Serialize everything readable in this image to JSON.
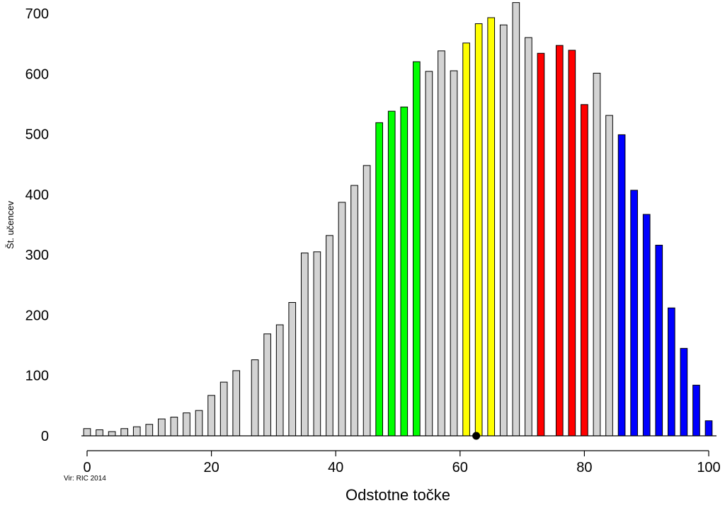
{
  "chart_data": {
    "type": "bar",
    "title": "",
    "xlabel": "Odstotne točke",
    "ylabel": "Št. učencev",
    "source": "Vir: RIC 2014",
    "xlim": [
      0,
      100
    ],
    "ylim": [
      0,
      700
    ],
    "xticks": [
      0,
      20,
      40,
      60,
      80,
      100
    ],
    "yticks": [
      0,
      100,
      200,
      300,
      400,
      500,
      600,
      700
    ],
    "grid": false,
    "legend": "none",
    "bar_width_units": 1.1,
    "colors": {
      "gray": "#d3d3d3",
      "green": "#00ff00",
      "yellow": "#ffff00",
      "red": "#ff0000",
      "blue": "#0000ff",
      "edge": "#000000",
      "marker": "#000000"
    },
    "bars": [
      {
        "x": 0,
        "y": 12,
        "color": "gray"
      },
      {
        "x": 2,
        "y": 10,
        "color": "gray"
      },
      {
        "x": 4,
        "y": 7,
        "color": "gray"
      },
      {
        "x": 6,
        "y": 12,
        "color": "gray"
      },
      {
        "x": 8,
        "y": 15,
        "color": "gray"
      },
      {
        "x": 10,
        "y": 19,
        "color": "gray"
      },
      {
        "x": 12,
        "y": 28,
        "color": "gray"
      },
      {
        "x": 14,
        "y": 31,
        "color": "gray"
      },
      {
        "x": 16,
        "y": 38,
        "color": "gray"
      },
      {
        "x": 18,
        "y": 42,
        "color": "gray"
      },
      {
        "x": 20,
        "y": 67,
        "color": "gray"
      },
      {
        "x": 22,
        "y": 89,
        "color": "gray"
      },
      {
        "x": 24,
        "y": 108,
        "color": "gray"
      },
      {
        "x": 27,
        "y": 126,
        "color": "gray"
      },
      {
        "x": 29,
        "y": 169,
        "color": "gray"
      },
      {
        "x": 31,
        "y": 184,
        "color": "gray"
      },
      {
        "x": 33,
        "y": 221,
        "color": "gray"
      },
      {
        "x": 35,
        "y": 303,
        "color": "gray"
      },
      {
        "x": 37,
        "y": 305,
        "color": "gray"
      },
      {
        "x": 39,
        "y": 332,
        "color": "gray"
      },
      {
        "x": 41,
        "y": 387,
        "color": "gray"
      },
      {
        "x": 43,
        "y": 415,
        "color": "gray"
      },
      {
        "x": 45,
        "y": 448,
        "color": "gray"
      },
      {
        "x": 47,
        "y": 519,
        "color": "green"
      },
      {
        "x": 49,
        "y": 538,
        "color": "green"
      },
      {
        "x": 51,
        "y": 545,
        "color": "green"
      },
      {
        "x": 53,
        "y": 620,
        "color": "green"
      },
      {
        "x": 55,
        "y": 604,
        "color": "gray"
      },
      {
        "x": 57,
        "y": 638,
        "color": "gray"
      },
      {
        "x": 59,
        "y": 605,
        "color": "gray"
      },
      {
        "x": 61,
        "y": 651,
        "color": "yellow"
      },
      {
        "x": 63,
        "y": 683,
        "color": "yellow"
      },
      {
        "x": 65,
        "y": 693,
        "color": "yellow"
      },
      {
        "x": 67,
        "y": 681,
        "color": "gray"
      },
      {
        "x": 69,
        "y": 718,
        "color": "gray"
      },
      {
        "x": 71,
        "y": 660,
        "color": "gray"
      },
      {
        "x": 73,
        "y": 634,
        "color": "red"
      },
      {
        "x": 76,
        "y": 647,
        "color": "red"
      },
      {
        "x": 78,
        "y": 639,
        "color": "red"
      },
      {
        "x": 80,
        "y": 549,
        "color": "red"
      },
      {
        "x": 82,
        "y": 601,
        "color": "gray"
      },
      {
        "x": 84,
        "y": 531,
        "color": "gray"
      },
      {
        "x": 86,
        "y": 499,
        "color": "blue"
      },
      {
        "x": 88,
        "y": 407,
        "color": "blue"
      },
      {
        "x": 90,
        "y": 367,
        "color": "blue"
      },
      {
        "x": 92,
        "y": 316,
        "color": "blue"
      },
      {
        "x": 94,
        "y": 212,
        "color": "blue"
      },
      {
        "x": 96,
        "y": 145,
        "color": "blue"
      },
      {
        "x": 98,
        "y": 84,
        "color": "blue"
      },
      {
        "x": 100,
        "y": 25,
        "color": "blue"
      }
    ],
    "markers": [
      {
        "x": 62.6,
        "y": 0
      }
    ]
  }
}
